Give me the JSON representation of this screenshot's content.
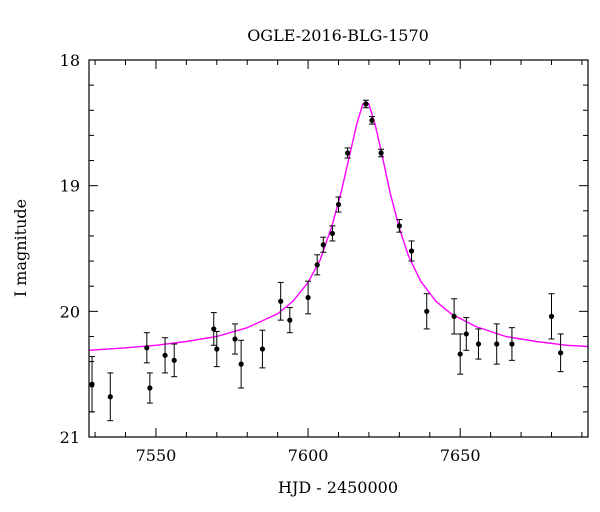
{
  "chart_data": {
    "type": "scatter",
    "title": "OGLE-2016-BLG-1570",
    "xlabel": "HJD - 2450000",
    "ylabel": "I magnitude",
    "xlim": [
      7528,
      7692
    ],
    "ylim": [
      21,
      18
    ],
    "y_inverted": true,
    "x_ticks": [
      7550,
      7600,
      7650
    ],
    "y_ticks": [
      18,
      19,
      20,
      21
    ],
    "x_minor_step": 10,
    "y_minor_step": 0.2,
    "grid": false,
    "legend": "none",
    "colors": {
      "points": "#000000",
      "model": "#ff00ff",
      "axes": "#000000"
    },
    "series": [
      {
        "kind": "data-points",
        "x": [
          7529,
          7535,
          7547,
          7548,
          7553,
          7556,
          7569,
          7570,
          7576,
          7578,
          7585,
          7591,
          7594,
          7600,
          7603,
          7605,
          7608,
          7610,
          7613,
          7619,
          7621,
          7624,
          7630,
          7634,
          7639,
          7648,
          7650,
          7652,
          7656,
          7662,
          7667,
          7680,
          7683
        ],
        "y": [
          20.58,
          20.68,
          20.29,
          20.61,
          20.35,
          20.39,
          20.14,
          20.3,
          20.22,
          20.42,
          20.3,
          19.92,
          20.07,
          19.89,
          19.63,
          19.47,
          19.38,
          19.15,
          18.74,
          18.35,
          18.48,
          18.74,
          19.32,
          19.52,
          20.0,
          20.04,
          20.34,
          20.18,
          20.26,
          20.26,
          20.26,
          20.04,
          20.33
        ],
        "err": [
          0.22,
          0.19,
          0.12,
          0.12,
          0.14,
          0.13,
          0.13,
          0.14,
          0.12,
          0.19,
          0.15,
          0.15,
          0.1,
          0.13,
          0.08,
          0.06,
          0.06,
          0.06,
          0.04,
          0.03,
          0.03,
          0.03,
          0.05,
          0.08,
          0.14,
          0.14,
          0.16,
          0.13,
          0.12,
          0.16,
          0.13,
          0.18,
          0.15
        ]
      },
      {
        "kind": "model-curve",
        "x": [
          7528,
          7540,
          7550,
          7560,
          7570,
          7580,
          7590,
          7595,
          7600,
          7604,
          7608,
          7611,
          7614,
          7616,
          7618,
          7619,
          7620,
          7622,
          7624,
          7627,
          7630,
          7633,
          7637,
          7642,
          7647,
          7655,
          7665,
          7675,
          7685,
          7692
        ],
        "y": [
          20.31,
          20.29,
          20.27,
          20.24,
          20.2,
          20.13,
          20.02,
          19.92,
          19.77,
          19.59,
          19.31,
          19.04,
          18.72,
          18.51,
          18.35,
          18.33,
          18.35,
          18.51,
          18.72,
          19.06,
          19.34,
          19.56,
          19.76,
          19.92,
          20.02,
          20.12,
          20.2,
          20.24,
          20.27,
          20.28
        ]
      }
    ]
  }
}
